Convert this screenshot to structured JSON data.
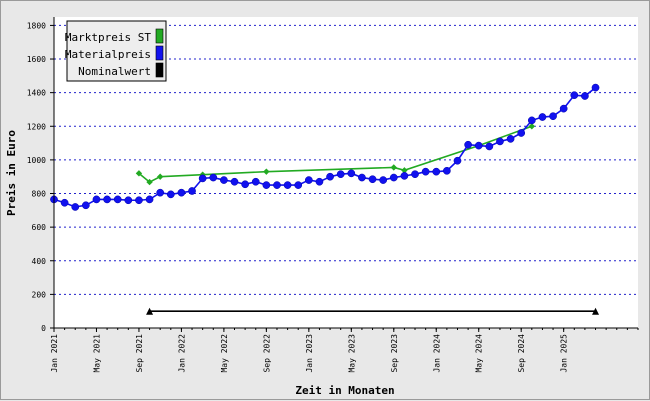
{
  "chart_data": {
    "type": "line",
    "xlabel": "Zeit in Monaten",
    "ylabel": "Preis in Euro",
    "ylim": [
      0,
      1850
    ],
    "yticks": [
      0,
      200,
      400,
      600,
      800,
      1000,
      1200,
      1400,
      1600,
      1800
    ],
    "xlim": [
      "2021-01",
      "2025-08"
    ],
    "xticks": [
      "Jan 2021",
      "May 2021",
      "Sep 2021",
      "Jan 2022",
      "May 2022",
      "Sep 2022",
      "Jan 2023",
      "May 2023",
      "Sep 2023",
      "Jan 2024",
      "May 2024",
      "Sep 2024",
      "Jan 2025"
    ],
    "grid": "horizontal dotted",
    "legend": {
      "position": "top-left",
      "entries": [
        {
          "label": "Marktpreis ST",
          "color": "#22aa22"
        },
        {
          "label": "Materialpreis",
          "color": "#1111ee"
        },
        {
          "label": "Nominalwert",
          "color": "#000000"
        }
      ]
    },
    "series": [
      {
        "name": "Marktpreis ST",
        "color": "#22aa22",
        "marker": "diamond",
        "points": [
          [
            "2021-09",
            920
          ],
          [
            "2021-10",
            868
          ],
          [
            "2021-11",
            900
          ],
          [
            "2022-03",
            912
          ],
          [
            "2022-09",
            930
          ],
          [
            "2023-09",
            955
          ],
          [
            "2023-10",
            938
          ],
          [
            "2024-05",
            1085
          ],
          [
            "2024-10",
            1200
          ]
        ]
      },
      {
        "name": "Materialpreis",
        "color": "#1111ee",
        "marker": "circle",
        "points": [
          [
            "2021-01",
            765
          ],
          [
            "2021-02",
            745
          ],
          [
            "2021-03",
            720
          ],
          [
            "2021-04",
            730
          ],
          [
            "2021-05",
            765
          ],
          [
            "2021-06",
            765
          ],
          [
            "2021-07",
            765
          ],
          [
            "2021-08",
            760
          ],
          [
            "2021-09",
            760
          ],
          [
            "2021-10",
            765
          ],
          [
            "2021-11",
            805
          ],
          [
            "2021-12",
            795
          ],
          [
            "2022-01",
            805
          ],
          [
            "2022-02",
            815
          ],
          [
            "2022-03",
            890
          ],
          [
            "2022-04",
            895
          ],
          [
            "2022-05",
            880
          ],
          [
            "2022-06",
            870
          ],
          [
            "2022-07",
            855
          ],
          [
            "2022-08",
            870
          ],
          [
            "2022-09",
            850
          ],
          [
            "2022-10",
            850
          ],
          [
            "2022-11",
            850
          ],
          [
            "2022-12",
            850
          ],
          [
            "2023-01",
            880
          ],
          [
            "2023-02",
            870
          ],
          [
            "2023-03",
            900
          ],
          [
            "2023-04",
            915
          ],
          [
            "2023-05",
            920
          ],
          [
            "2023-06",
            895
          ],
          [
            "2023-07",
            885
          ],
          [
            "2023-08",
            880
          ],
          [
            "2023-09",
            895
          ],
          [
            "2023-10",
            905
          ],
          [
            "2023-11",
            915
          ],
          [
            "2023-12",
            930
          ],
          [
            "2024-01",
            930
          ],
          [
            "2024-02",
            935
          ],
          [
            "2024-03",
            995
          ],
          [
            "2024-04",
            1090
          ],
          [
            "2024-05",
            1085
          ],
          [
            "2024-06",
            1080
          ],
          [
            "2024-07",
            1110
          ],
          [
            "2024-08",
            1125
          ],
          [
            "2024-09",
            1160
          ],
          [
            "2024-10",
            1235
          ],
          [
            "2024-11",
            1255
          ],
          [
            "2024-12",
            1260
          ],
          [
            "2025-01",
            1305
          ],
          [
            "2025-02",
            1385
          ],
          [
            "2025-03",
            1380
          ],
          [
            "2025-04",
            1430
          ]
        ]
      },
      {
        "name": "Nominalwert",
        "color": "#000000",
        "marker": "triangle",
        "points": [
          [
            "2021-10",
            100
          ],
          [
            "2025-04",
            100
          ]
        ]
      }
    ]
  }
}
